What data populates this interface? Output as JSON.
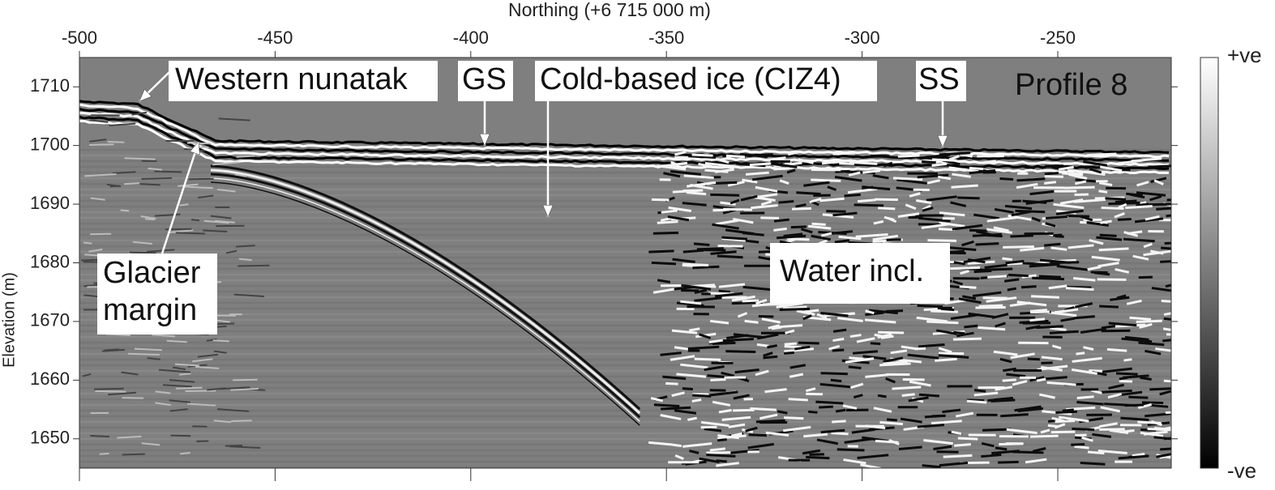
{
  "chart_data": {
    "type": "radargram",
    "x_label": "Northing (+6 715 000 m)",
    "y_label": "Elevation (m)",
    "xlim": [
      -500,
      -221
    ],
    "xticks": [
      -500,
      -450,
      -400,
      -350,
      -300,
      -250
    ],
    "ylim": [
      1645,
      1715
    ],
    "yticks": [
      1650,
      1660,
      1670,
      1680,
      1690,
      1700,
      1710
    ],
    "colorbar_labels": [
      "+ve",
      "-ve"
    ],
    "annotations": [
      "Western nunatak",
      "GS",
      "Cold-based ice (CIZ4)",
      "SS",
      "Profile 8",
      "Glacier",
      "margin",
      "Water incl."
    ]
  }
}
